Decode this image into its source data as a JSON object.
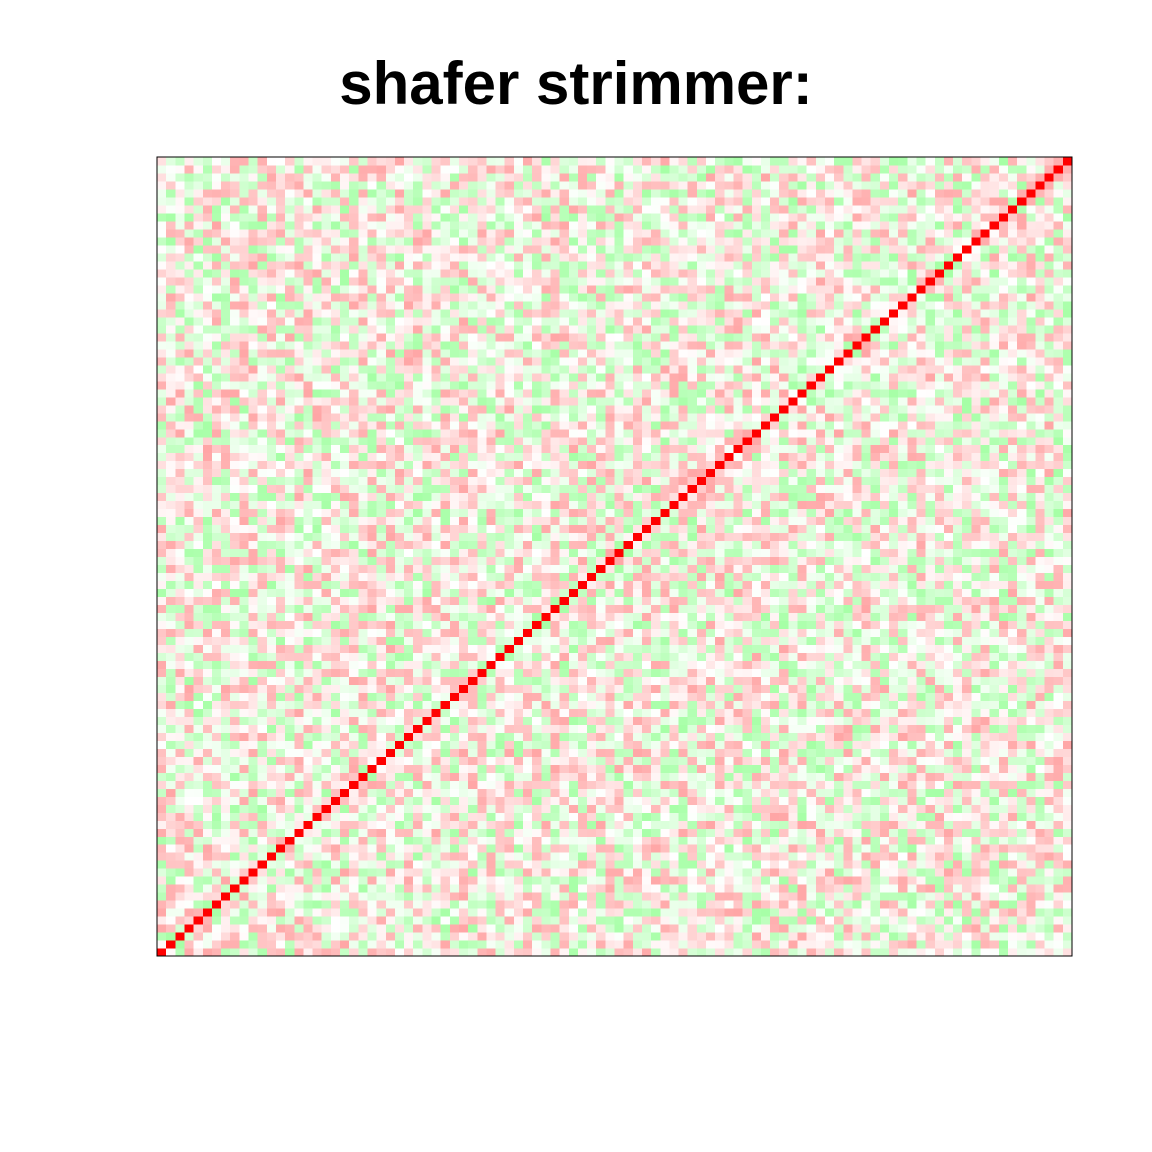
{
  "chart_data": {
    "type": "heatmap",
    "title": "shafer strimmer:",
    "xlabel": "",
    "ylabel": "",
    "matrix_size": 100,
    "diagonal_value": 1.0,
    "value_range": [
      -1,
      1
    ],
    "off_diagonal_range": [
      -0.35,
      0.35
    ],
    "grid": false,
    "legend": "none",
    "colors": {
      "negative": "#00ff00",
      "zero": "#ffffff",
      "positive": "#ff0000"
    }
  }
}
